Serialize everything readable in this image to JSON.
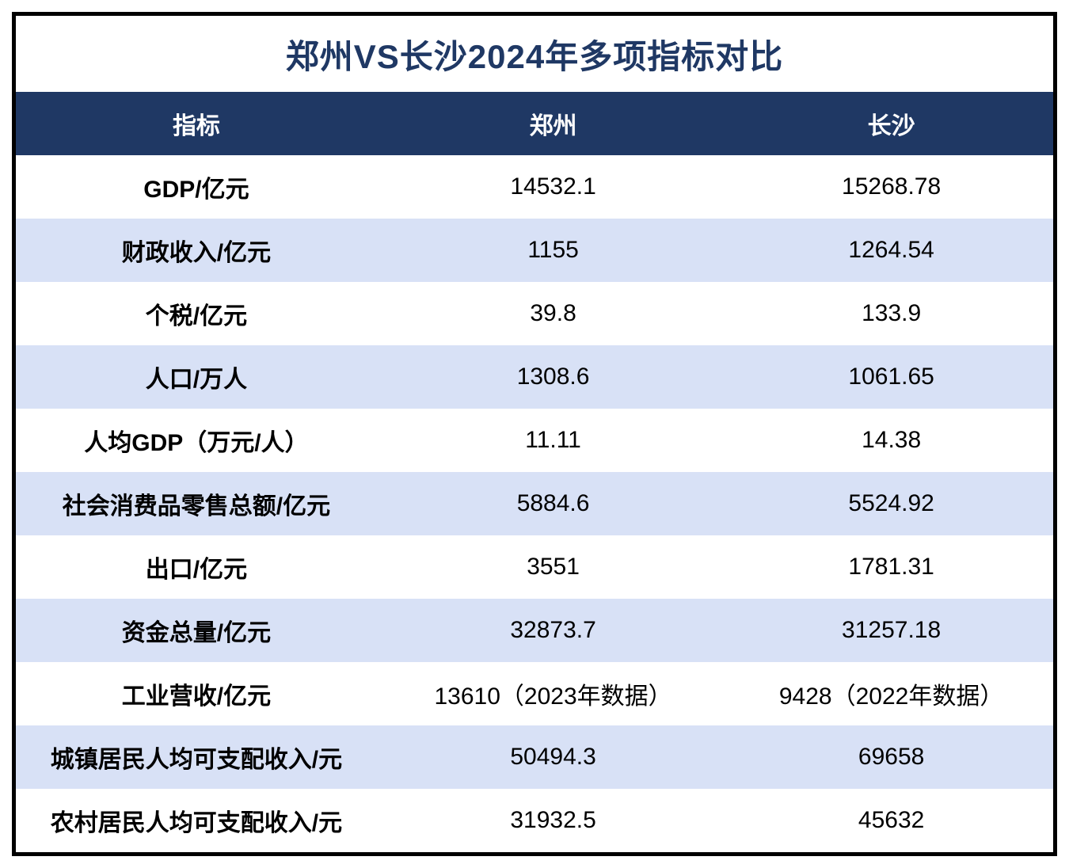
{
  "title": "郑州VS长沙2024年多项指标对比",
  "colors": {
    "title_text": "#1F3864",
    "header_bg": "#1F3864",
    "header_text": "#FFFFFF",
    "alt_row_bg": "#D8E1F6",
    "row_bg": "#FFFFFF",
    "body_text": "#000000",
    "border": "#000000"
  },
  "chart_data": {
    "type": "table",
    "title": "郑州VS长沙2024年多项指标对比",
    "columns": [
      "指标",
      "郑州",
      "长沙"
    ],
    "rows": [
      [
        "GDP/亿元",
        "14532.1",
        "15268.78"
      ],
      [
        "财政收入/亿元",
        "1155",
        "1264.54"
      ],
      [
        "个税/亿元",
        "39.8",
        "133.9"
      ],
      [
        "人口/万人",
        "1308.6",
        "1061.65"
      ],
      [
        "人均GDP（万元/人）",
        "11.11",
        "14.38"
      ],
      [
        "社会消费品零售总额/亿元",
        "5884.6",
        "5524.92"
      ],
      [
        "出口/亿元",
        "3551",
        "1781.31"
      ],
      [
        "资金总量/亿元",
        "32873.7",
        "31257.18"
      ],
      [
        "工业营收/亿元",
        "13610（2023年数据）",
        "9428（2022年数据）"
      ],
      [
        "城镇居民人均可支配收入/元",
        "50494.3",
        "69658"
      ],
      [
        "农村居民人均可支配收入/元",
        "31932.5",
        "45632"
      ]
    ],
    "layout": {
      "alternating_row_colors": true,
      "first_data_row_color": "white",
      "column_alignment": [
        "center",
        "center",
        "center"
      ]
    }
  }
}
